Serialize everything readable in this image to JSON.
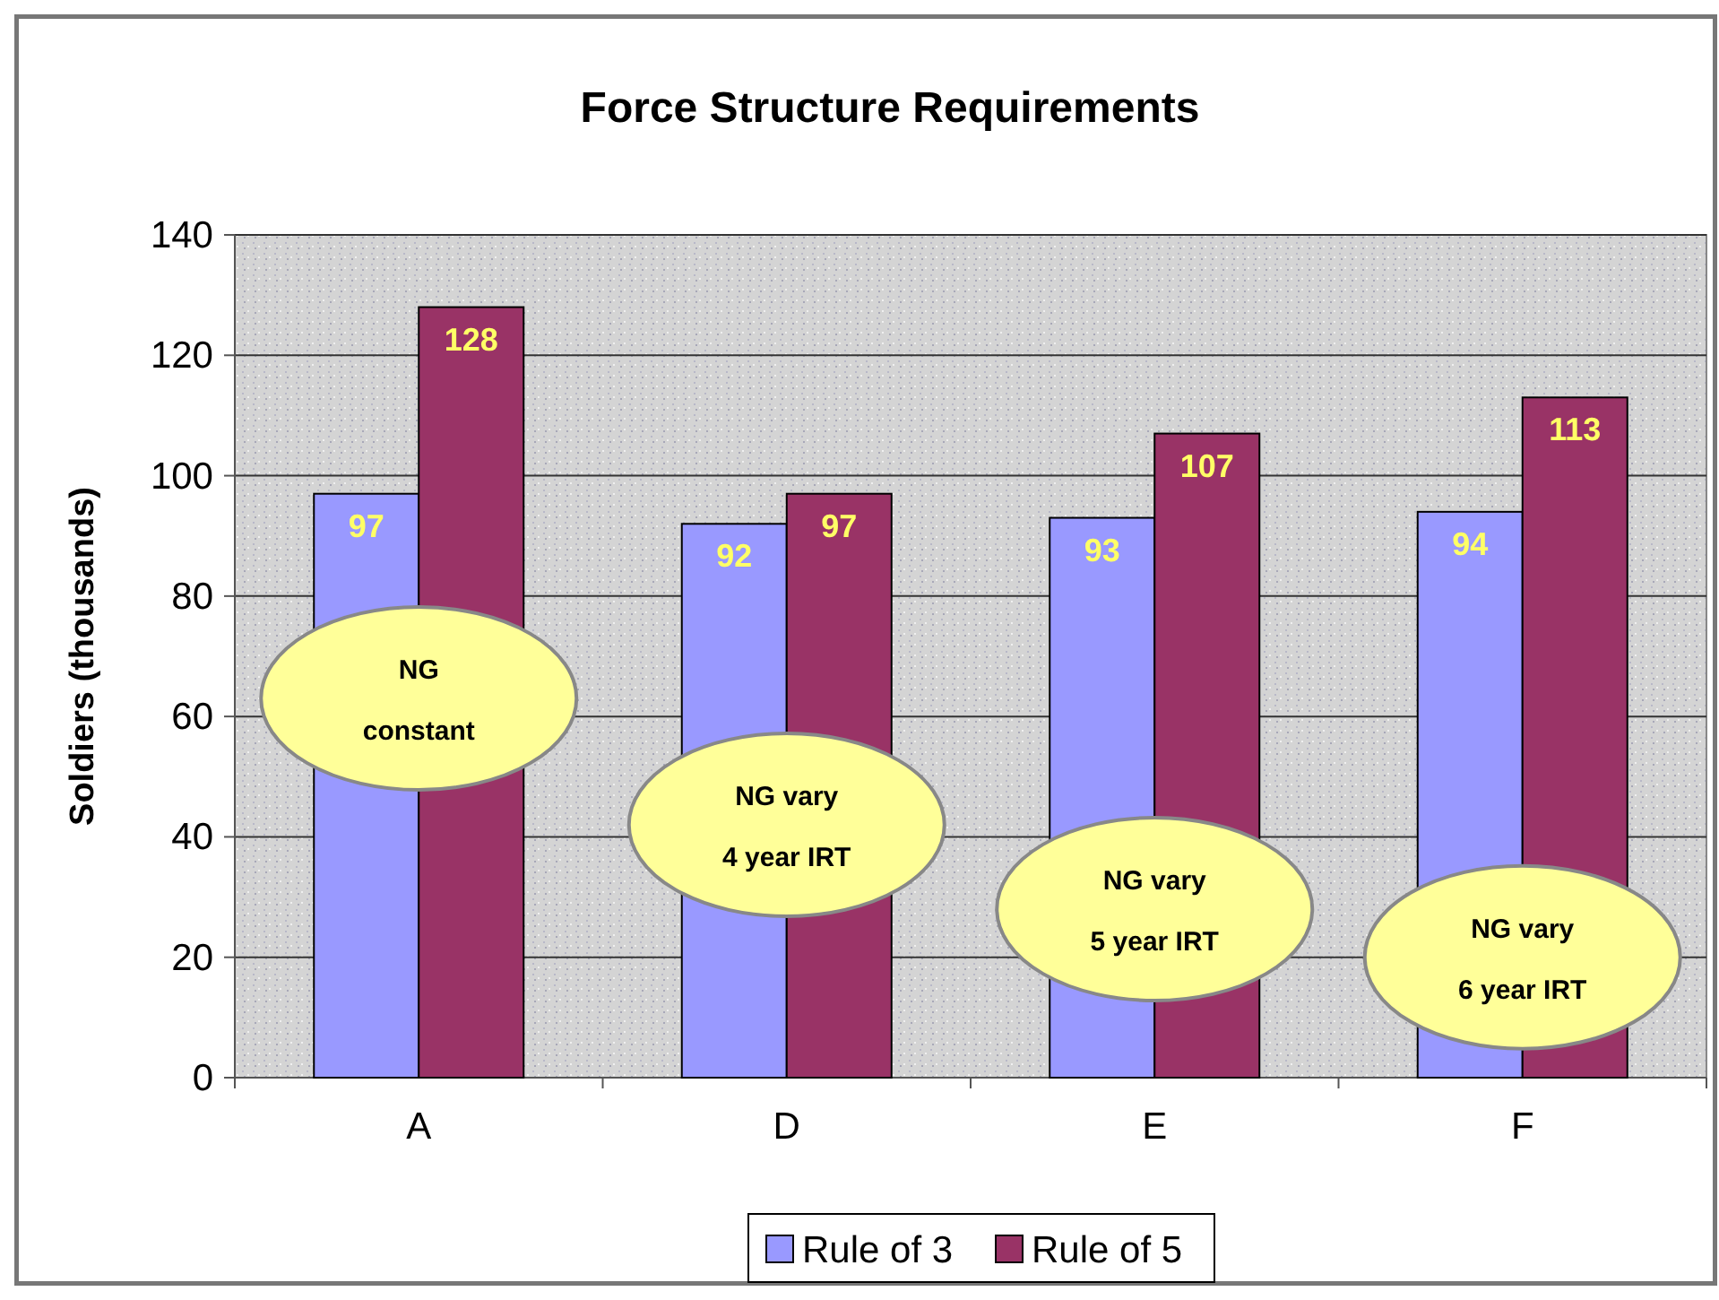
{
  "chart_data": {
    "type": "bar",
    "title": "Force Structure Requirements",
    "ylabel": "Soldiers (thousands)",
    "categories": [
      "A",
      "D",
      "E",
      "F"
    ],
    "series": [
      {
        "name": "Rule of 3",
        "color": "#9999ff",
        "values": [
          97,
          92,
          93,
          94
        ]
      },
      {
        "name": "Rule of 5",
        "color": "#993366",
        "values": [
          128,
          97,
          107,
          113
        ]
      }
    ],
    "ylim": [
      0,
      140
    ],
    "yticks": [
      0,
      20,
      40,
      60,
      80,
      100,
      120,
      140
    ],
    "grid": "y",
    "data_labels": true,
    "legend": "bottom",
    "annotations": [
      {
        "text": "NG\nconstant",
        "x": "A",
        "y": 63
      },
      {
        "text": "NG vary\n4 year IRT",
        "x": "D",
        "y": 42
      },
      {
        "text": "NG vary\n5 year IRT",
        "x": "E",
        "y": 28
      },
      {
        "text": "NG vary\n6 year IRT",
        "x": "F",
        "y": 20
      }
    ]
  }
}
